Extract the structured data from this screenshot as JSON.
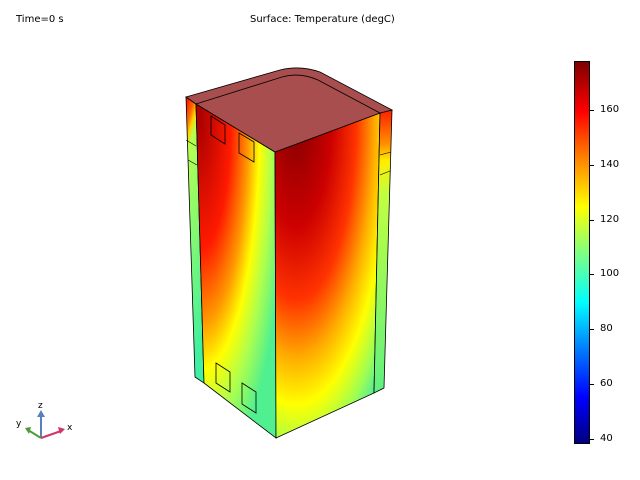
{
  "time_label": "Time=0 s",
  "plot_title": "Surface: Temperature (degC)",
  "colorbar": {
    "min": 38,
    "max": 178,
    "ticks": [
      "160",
      "140",
      "120",
      "100",
      "80",
      "60",
      "40"
    ],
    "tick_values": [
      160,
      140,
      120,
      100,
      80,
      60,
      40
    ],
    "colormap": "rainbow"
  },
  "axes": {
    "x": "x",
    "y": "y",
    "z": "z"
  },
  "colors": {
    "top_face": "#a84e4e",
    "hot": "#7f0000",
    "warm": "#ff0000",
    "mid": "#ffff00",
    "cool": "#40ff9a"
  }
}
